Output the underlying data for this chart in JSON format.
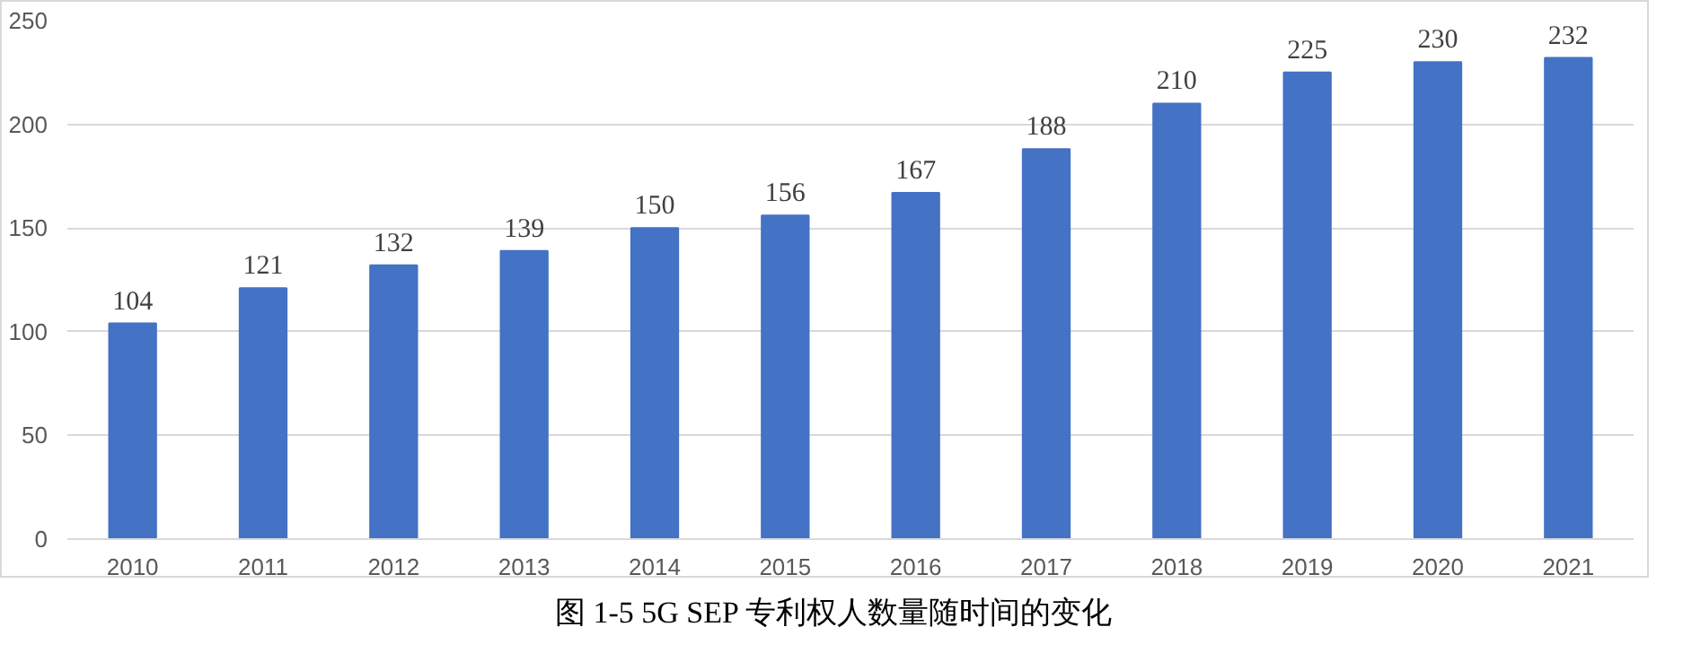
{
  "chart_data": {
    "type": "bar",
    "categories": [
      "2010",
      "2011",
      "2012",
      "2013",
      "2014",
      "2015",
      "2016",
      "2017",
      "2018",
      "2019",
      "2020",
      "2021"
    ],
    "values": [
      104,
      121,
      132,
      139,
      150,
      156,
      167,
      188,
      210,
      225,
      230,
      232
    ],
    "color": "#4472c4",
    "ylim": [
      0,
      250
    ],
    "yticks": [
      0,
      50,
      100,
      150,
      200,
      250
    ],
    "grid": "y",
    "data_labels": true,
    "annotations": [
      "图 1-5 5G SEP 专利权人数量随时间的变化"
    ]
  }
}
